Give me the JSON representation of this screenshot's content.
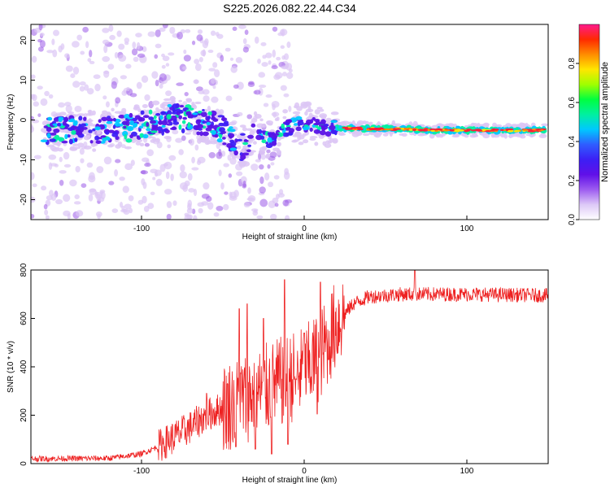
{
  "title": "S225.2026.082.22.44.C34",
  "chart_data": [
    {
      "type": "heatmap",
      "xlabel": "Height of straight line (km)",
      "ylabel": "Frequency (Hz)",
      "xlim": [
        -168,
        150
      ],
      "ylim": [
        -25,
        24
      ],
      "xticks": [
        -100,
        0,
        100
      ],
      "yticks": [
        -20,
        -10,
        0,
        10,
        20
      ],
      "colorbar": {
        "label": "Normalized spectral amplitude",
        "range": [
          0.0,
          1.0
        ],
        "ticks": [
          0.0,
          0.2,
          0.4,
          0.6,
          0.8
        ],
        "tick_labels": [
          "0.0",
          "0.2",
          "0.4",
          "0.6",
          "0.8"
        ],
        "colors": [
          "#ffffff",
          "#ddc8f7",
          "#9d5cf0",
          "#6010e8",
          "#3c1ff5",
          "#2f5dff",
          "#00c8ff",
          "#00f0a0",
          "#00ff40",
          "#a0ff00",
          "#ffe600",
          "#ff8c00",
          "#ff2a00",
          "#ff1a8c"
        ]
      },
      "ridge_frequency_hz": [
        [
          -150,
          -2.5
        ],
        [
          -130,
          -2.6
        ],
        [
          -110,
          -2.2
        ],
        [
          -90,
          -0.5
        ],
        [
          -80,
          0.8
        ],
        [
          -70,
          0.2
        ],
        [
          -60,
          -0.8
        ],
        [
          -50,
          -2.3
        ],
        [
          -45,
          -5.0
        ],
        [
          -40,
          -7.2
        ],
        [
          -35,
          -5.8
        ],
        [
          -30,
          -3.2
        ],
        [
          -25,
          -4.5
        ],
        [
          -20,
          -5.5
        ],
        [
          -15,
          -3.5
        ],
        [
          -10,
          -1.8
        ],
        [
          0,
          -0.8
        ],
        [
          10,
          -1.5
        ],
        [
          20,
          -2.0
        ],
        [
          40,
          -2.2
        ],
        [
          60,
          -2.3
        ],
        [
          80,
          -2.5
        ],
        [
          100,
          -2.6
        ],
        [
          120,
          -2.6
        ],
        [
          148,
          -2.6
        ]
      ]
    },
    {
      "type": "line",
      "xlabel": "Height of straight line (km)",
      "ylabel": "SNR (10 * v/v)",
      "xlim": [
        -168,
        150
      ],
      "ylim": [
        0,
        800
      ],
      "xticks": [
        -100,
        0,
        100
      ],
      "yticks": [
        0,
        200,
        400,
        600,
        800
      ],
      "color": "#ee2222",
      "baseline_snr": [
        [
          -168,
          20
        ],
        [
          -120,
          22
        ],
        [
          -100,
          40
        ],
        [
          -90,
          70
        ],
        [
          -80,
          110
        ],
        [
          -70,
          150
        ],
        [
          -60,
          200
        ],
        [
          -50,
          230
        ],
        [
          -40,
          260
        ],
        [
          -30,
          290
        ],
        [
          -20,
          320
        ],
        [
          -10,
          350
        ],
        [
          0,
          380
        ],
        [
          10,
          450
        ],
        [
          20,
          580
        ],
        [
          30,
          660
        ],
        [
          40,
          690
        ],
        [
          60,
          700
        ],
        [
          100,
          700
        ],
        [
          150,
          695
        ]
      ],
      "peaks_snr": [
        [
          -60,
          290
        ],
        [
          -40,
          640
        ],
        [
          -35,
          660
        ],
        [
          -25,
          600
        ],
        [
          -12,
          760
        ],
        [
          0,
          540
        ],
        [
          10,
          750
        ],
        [
          68,
          805
        ]
      ],
      "dips_snr": [
        [
          -42,
          70
        ],
        [
          -30,
          60
        ],
        [
          -20,
          40
        ],
        [
          -10,
          80
        ],
        [
          -5,
          350
        ],
        [
          8,
          205
        ],
        [
          15,
          430
        ]
      ]
    }
  ]
}
